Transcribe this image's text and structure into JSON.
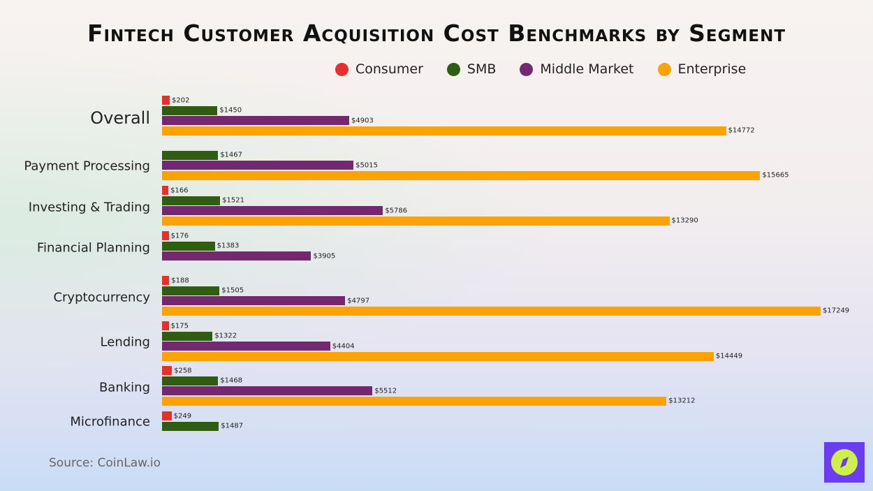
{
  "chart_data": {
    "type": "bar",
    "orientation": "horizontal",
    "title": "Fintech Customer Acquisition Cost Benchmarks by Segment",
    "categories": [
      "Overall",
      "Payment Processing",
      "Investing & Trading",
      "Financial Planning",
      "Cryptocurrency",
      "Lending",
      "Banking",
      "Microfinance"
    ],
    "series": [
      {
        "name": "Consumer",
        "color": "#e8302a",
        "values": [
          202,
          null,
          166,
          176,
          188,
          175,
          258,
          249
        ]
      },
      {
        "name": "SMB",
        "color": "#2f5e12",
        "values": [
          1450,
          1467,
          1521,
          1383,
          1505,
          1322,
          1468,
          1487
        ]
      },
      {
        "name": "Middle Market",
        "color": "#74286f",
        "values": [
          4903,
          5015,
          5786,
          3905,
          4797,
          4404,
          5512,
          null
        ]
      },
      {
        "name": "Enterprise",
        "color": "#fba304",
        "values": [
          14772,
          15665,
          13290,
          null,
          17249,
          14449,
          13212,
          null
        ]
      }
    ],
    "value_prefix": "$",
    "legend_position": "top",
    "grid": false
  },
  "source": "Source: CoinLaw.io",
  "logo_icon": "compass-icon"
}
